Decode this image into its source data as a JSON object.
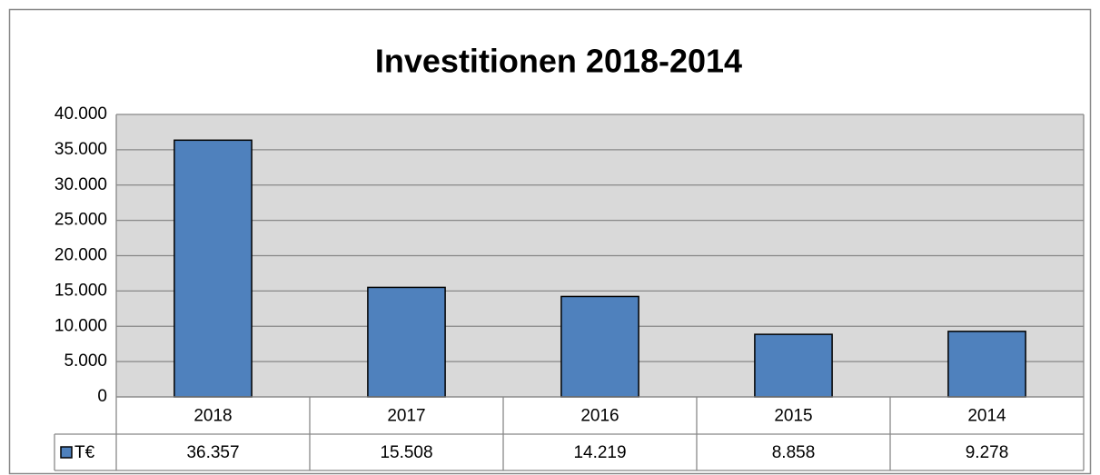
{
  "chart_data": {
    "type": "bar",
    "title": "Investitionen 2018-2014",
    "categories": [
      "2018",
      "2017",
      "2016",
      "2015",
      "2014"
    ],
    "series": [
      {
        "name": "T€",
        "color": "#4f81bd",
        "values": [
          36357,
          15508,
          14219,
          8858,
          9278
        ],
        "value_labels": [
          "36.357",
          "15.508",
          "14.219",
          "8.858",
          "9.278"
        ]
      }
    ],
    "ylim": [
      0,
      40000
    ],
    "yticks": [
      0,
      {
        "value": 5000,
        "label": "5.000"
      },
      {
        "value": 10000,
        "label": "10.000"
      },
      {
        "value": 15000,
        "label": "15.000"
      },
      {
        "value": 20000,
        "label": "20.000"
      },
      {
        "value": 25000,
        "label": "25.000"
      },
      {
        "value": 30000,
        "label": "30.000"
      },
      {
        "value": 35000,
        "label": "35.000"
      },
      {
        "value": 40000,
        "label": "40.000"
      }
    ],
    "grid": true
  }
}
